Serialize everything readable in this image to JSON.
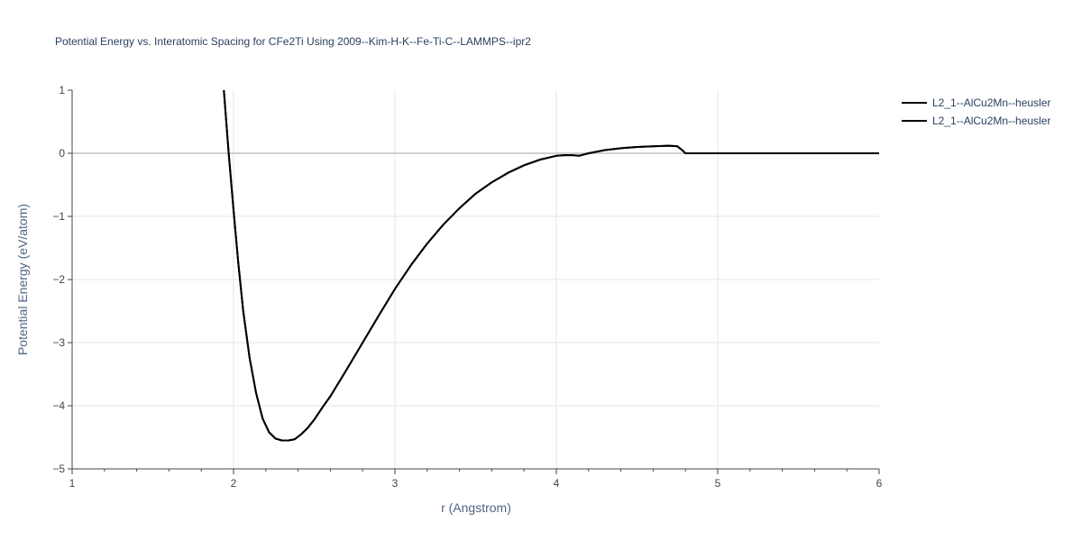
{
  "chart_data": {
    "type": "line",
    "title": "Potential Energy vs. Interatomic Spacing for CFe2Ti Using 2009--Kim-H-K--Fe-Ti-C--LAMMPS--ipr2",
    "xlabel": "r (Angstrom)",
    "ylabel": "Potential Energy (eV/atom)",
    "xlim": [
      1,
      6
    ],
    "ylim": [
      -5,
      1
    ],
    "x_ticks": [
      "1",
      "2",
      "3",
      "4",
      "5",
      "6"
    ],
    "y_ticks": [
      "1",
      "0",
      "−1",
      "−2",
      "−3",
      "−4",
      "−5"
    ],
    "grid": true,
    "legend_position": "top-right",
    "line_color": "#000000",
    "series": [
      {
        "name": "L2_1--AlCu2Mn--heusler",
        "x": [
          1.94,
          1.97,
          2.0,
          2.03,
          2.06,
          2.1,
          2.14,
          2.18,
          2.22,
          2.26,
          2.3,
          2.34,
          2.38,
          2.42,
          2.46,
          2.5,
          2.55,
          2.6,
          2.7,
          2.8,
          2.9,
          3.0,
          3.1,
          3.2,
          3.3,
          3.4,
          3.5,
          3.6,
          3.7,
          3.8,
          3.9,
          4.0,
          4.05,
          4.1,
          4.14,
          4.2,
          4.3,
          4.4,
          4.5,
          4.6,
          4.7,
          4.75,
          4.78,
          4.8,
          4.85,
          5.0,
          5.5,
          6.0
        ],
        "y": [
          1.0,
          0.0,
          -0.9,
          -1.75,
          -2.5,
          -3.25,
          -3.8,
          -4.2,
          -4.42,
          -4.52,
          -4.55,
          -4.55,
          -4.53,
          -4.45,
          -4.35,
          -4.22,
          -4.03,
          -3.85,
          -3.43,
          -3.0,
          -2.57,
          -2.15,
          -1.77,
          -1.43,
          -1.13,
          -0.87,
          -0.64,
          -0.46,
          -0.31,
          -0.19,
          -0.1,
          -0.04,
          -0.03,
          -0.03,
          -0.04,
          0.0,
          0.05,
          0.08,
          0.1,
          0.11,
          0.12,
          0.11,
          0.05,
          0.0,
          0.0,
          0.0,
          0.0,
          0.0
        ]
      },
      {
        "name": "L2_1--AlCu2Mn--heusler",
        "x": [
          1.94,
          1.97,
          2.0,
          2.03,
          2.06,
          2.1,
          2.14,
          2.18,
          2.22,
          2.26,
          2.3,
          2.34,
          2.38,
          2.42,
          2.46,
          2.5,
          2.55,
          2.6,
          2.7,
          2.8,
          2.9,
          3.0,
          3.1,
          3.2,
          3.3,
          3.4,
          3.5,
          3.6,
          3.7,
          3.8,
          3.9,
          4.0,
          4.05,
          4.1,
          4.14,
          4.2,
          4.3,
          4.4,
          4.5,
          4.6,
          4.7,
          4.75,
          4.78,
          4.8,
          4.85,
          5.0,
          5.5,
          6.0
        ],
        "y": [
          1.0,
          0.0,
          -0.9,
          -1.75,
          -2.5,
          -3.25,
          -3.8,
          -4.2,
          -4.42,
          -4.52,
          -4.55,
          -4.55,
          -4.53,
          -4.45,
          -4.35,
          -4.22,
          -4.03,
          -3.85,
          -3.43,
          -3.0,
          -2.57,
          -2.15,
          -1.77,
          -1.43,
          -1.13,
          -0.87,
          -0.64,
          -0.46,
          -0.31,
          -0.19,
          -0.1,
          -0.04,
          -0.03,
          -0.03,
          -0.04,
          0.0,
          0.05,
          0.08,
          0.1,
          0.11,
          0.12,
          0.11,
          0.05,
          0.0,
          0.0,
          0.0,
          0.0,
          0.0
        ]
      }
    ]
  }
}
